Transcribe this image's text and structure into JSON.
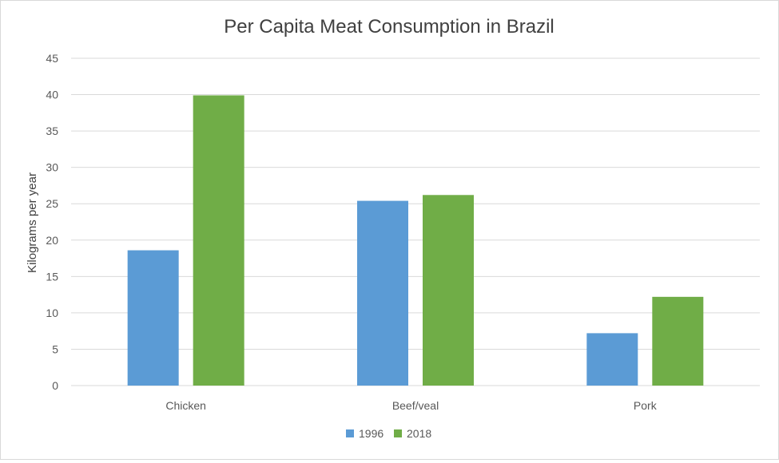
{
  "chart_data": {
    "type": "bar",
    "title": "Per Capita Meat Consumption in Brazil",
    "xlabel": "",
    "ylabel": "Kilograms per year",
    "categories": [
      "Chicken",
      "Beef/veal",
      "Pork"
    ],
    "series": [
      {
        "name": "1996",
        "values": [
          18.6,
          25.4,
          7.2
        ],
        "color": "#5b9bd5"
      },
      {
        "name": "2018",
        "values": [
          39.9,
          26.2,
          12.2
        ],
        "color": "#70ad47"
      }
    ],
    "ylim": [
      0,
      45
    ],
    "yticks": [
      0,
      5,
      10,
      15,
      20,
      25,
      30,
      35,
      40,
      45
    ],
    "grid": true,
    "legend": "bottom-center"
  }
}
